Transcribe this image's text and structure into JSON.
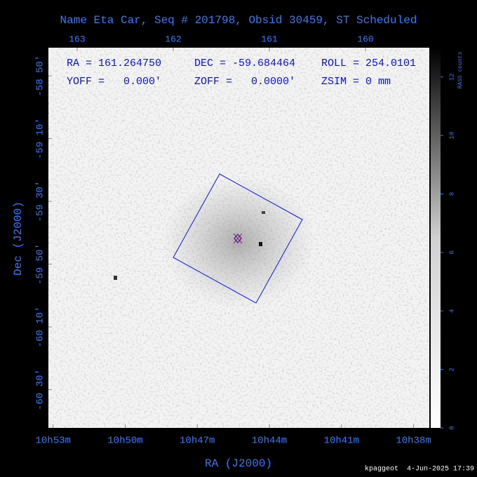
{
  "chart_data": {
    "type": "image",
    "title": "Name Eta Car, Seq # 201798, Obsid 30459, ST Scheduled",
    "x_label": "RA (J2000)",
    "y_label": "Dec (J2000)",
    "xlim": [
      163.299,
      159.336
    ],
    "xticks": [
      {
        "value": 163.25,
        "label": "10h53m"
      },
      {
        "value": 162.5,
        "label": "10h50m"
      },
      {
        "value": 161.75,
        "label": "10h47m"
      },
      {
        "value": 161.0,
        "label": "10h44m"
      },
      {
        "value": 160.25,
        "label": "10h41m"
      },
      {
        "value": 159.5,
        "label": "10h38m"
      }
    ],
    "x2ticks": [
      163,
      162,
      161,
      160
    ],
    "ylim": [
      -60.703,
      -58.684
    ],
    "yticks": [
      {
        "value": -58.8333,
        "label": "-58 50'"
      },
      {
        "value": -59.1667,
        "label": "-59 10'"
      },
      {
        "value": -59.5,
        "label": "-59 30'"
      },
      {
        "value": -59.8333,
        "label": "-59 50'"
      },
      {
        "value": -60.1667,
        "label": "-60 10'"
      },
      {
        "value": -60.5,
        "label": "-60 30'"
      }
    ],
    "colorbar": {
      "label": "RASS counts",
      "lim": [
        0,
        13
      ],
      "ticks": [
        0,
        2,
        4,
        6,
        8,
        10,
        12
      ]
    },
    "annotations": [
      "RA = 161.264750",
      "DEC = -59.684464",
      "ROLL = 254.0101",
      "YOFF =   0.000'",
      "ZOFF =   0.0000'",
      "ZSIM = 0 mm"
    ]
  },
  "footer": "kpaggeot  4-Jun-2025 17:39"
}
